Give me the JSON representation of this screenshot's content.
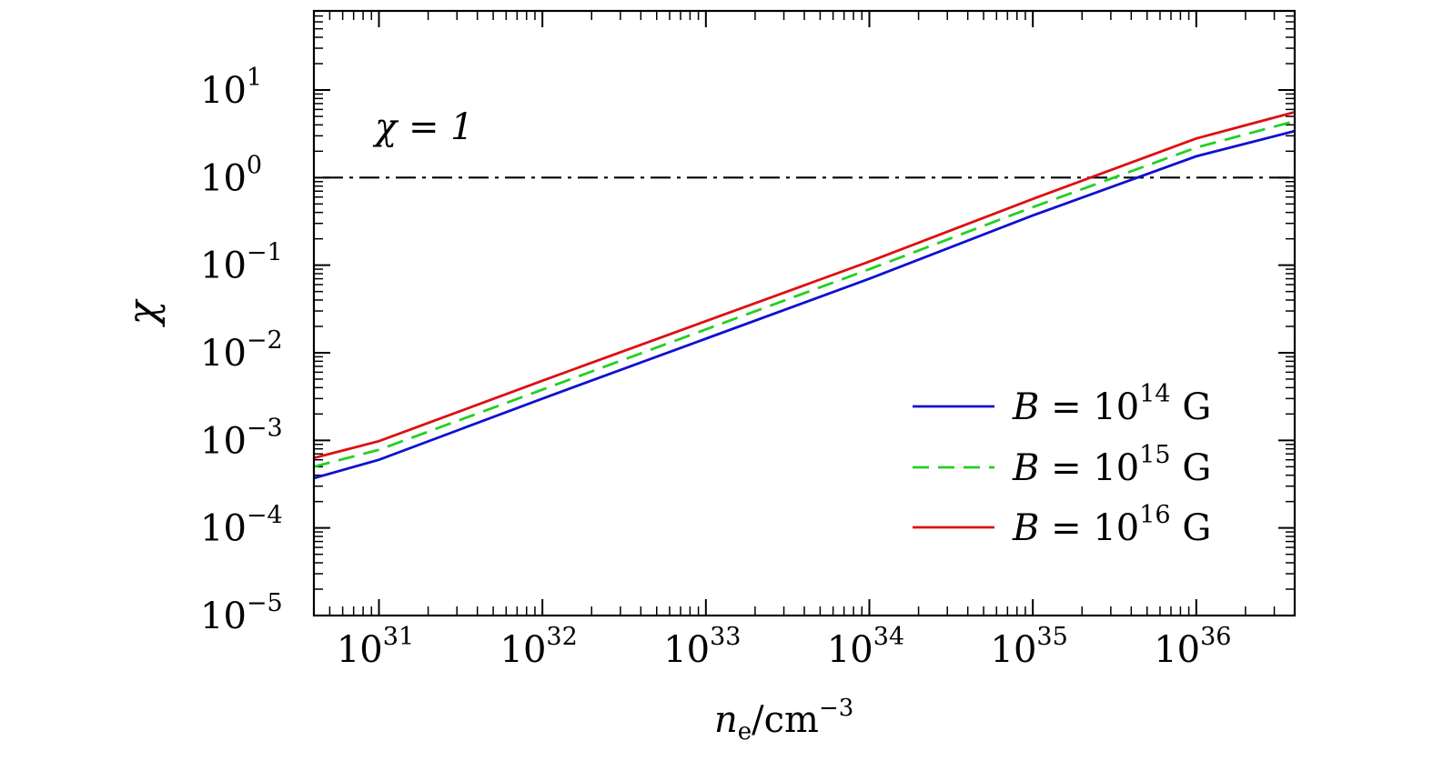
{
  "chart_data": {
    "type": "line",
    "xscale": "log",
    "yscale": "log",
    "xlim": [
      4e+30,
      4e+36
    ],
    "ylim": [
      1e-05,
      80
    ],
    "xlabel": {
      "var": "n",
      "sub": "e",
      "unit": "/cm",
      "exp": "−3"
    },
    "ylabel": "χ",
    "x_ticks": [
      {
        "base": "10",
        "exp": "31",
        "value": 1e+31
      },
      {
        "base": "10",
        "exp": "32",
        "value": 1e+32
      },
      {
        "base": "10",
        "exp": "33",
        "value": 1e+33
      },
      {
        "base": "10",
        "exp": "34",
        "value": 1e+34
      },
      {
        "base": "10",
        "exp": "35",
        "value": 1e+35
      },
      {
        "base": "10",
        "exp": "36",
        "value": 1e+36
      }
    ],
    "y_ticks": [
      {
        "base": "10",
        "exp": "1",
        "value": 10
      },
      {
        "base": "10",
        "exp": "0",
        "value": 1
      },
      {
        "base": "10",
        "exp": "−1",
        "value": 0.1
      },
      {
        "base": "10",
        "exp": "−2",
        "value": 0.01
      },
      {
        "base": "10",
        "exp": "−3",
        "value": 0.001
      },
      {
        "base": "10",
        "exp": "−4",
        "value": 0.0001
      },
      {
        "base": "10",
        "exp": "−5",
        "value": 1e-05
      }
    ],
    "reference_line": {
      "y": 1,
      "style": "dash-dot",
      "color": "#000000",
      "label": "χ = 1"
    },
    "legend": {
      "placement": "lower-right"
    },
    "series": [
      {
        "label_var": "B",
        "label_mid": " = 10",
        "label_exp": "14",
        "label_unit": " G",
        "color": "#1010d0",
        "style": "solid",
        "points": [
          [
            4e+30,
            0.00037
          ],
          [
            1e+31,
            0.0006
          ],
          [
            1e+32,
            0.003
          ],
          [
            1e+33,
            0.0145
          ],
          [
            1e+34,
            0.07
          ],
          [
            1e+35,
            0.37
          ],
          [
            1e+36,
            1.75
          ],
          [
            4e+36,
            3.4
          ]
        ]
      },
      {
        "label_var": "B",
        "label_mid": " = 10",
        "label_exp": "15",
        "label_unit": " G",
        "color": "#22d022",
        "style": "dashed",
        "points": [
          [
            4e+30,
            0.0005
          ],
          [
            1e+31,
            0.00078
          ],
          [
            1e+32,
            0.0038
          ],
          [
            1e+33,
            0.0185
          ],
          [
            1e+34,
            0.09
          ],
          [
            1e+35,
            0.46
          ],
          [
            1e+36,
            2.2
          ],
          [
            4e+36,
            4.4
          ]
        ]
      },
      {
        "label_var": "B",
        "label_mid": " = 10",
        "label_exp": "16",
        "label_unit": " G",
        "color": "#dd1010",
        "style": "solid",
        "points": [
          [
            4e+30,
            0.00063
          ],
          [
            1e+31,
            0.00098
          ],
          [
            1e+32,
            0.0048
          ],
          [
            1e+33,
            0.023
          ],
          [
            1e+34,
            0.11
          ],
          [
            1e+35,
            0.57
          ],
          [
            1e+36,
            2.8
          ],
          [
            4e+36,
            5.6
          ]
        ]
      }
    ]
  }
}
